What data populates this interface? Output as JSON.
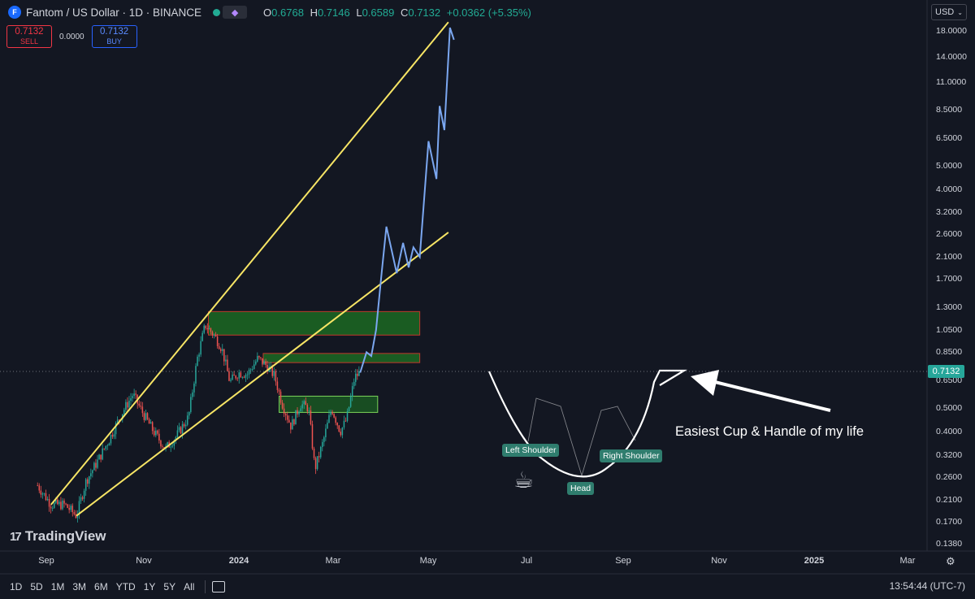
{
  "header": {
    "logo_text": "F",
    "symbol_title": "Fantom / US Dollar · 1D · BINANCE",
    "ohlc": [
      {
        "k": "O",
        "v": "0.6768"
      },
      {
        "k": "H",
        "v": "0.7146"
      },
      {
        "k": "L",
        "v": "0.6589"
      },
      {
        "k": "C",
        "v": "0.7132"
      }
    ],
    "change": "+0.0362 (+5.35%)"
  },
  "trade": {
    "sell_price": "0.7132",
    "sell_label": "SELL",
    "spread": "0.0000",
    "buy_price": "0.7132",
    "buy_label": "BUY"
  },
  "currency": "USD",
  "last_price": "0.7132",
  "colors": {
    "bg": "#131722",
    "up": "#26a69a",
    "down": "#ef5350",
    "trend": "#f7e565",
    "projection": "#7ba7f0",
    "zone": "#1e7a22"
  },
  "chart_data": {
    "type": "candlestick",
    "symbol": "Fantom / US Dollar",
    "interval": "1D",
    "exchange": "BINANCE",
    "y_scale": "log",
    "y_ticks": [
      "18.0000",
      "14.0000",
      "11.0000",
      "8.5000",
      "6.5000",
      "5.0000",
      "4.0000",
      "3.2000",
      "2.6000",
      "2.1000",
      "1.7000",
      "1.3000",
      "1.0500",
      "0.8500",
      "0.6500",
      "0.5000",
      "0.4000",
      "0.3200",
      "0.2600",
      "0.2100",
      "0.1700",
      "0.1380"
    ],
    "x_ticks": [
      "Sep",
      "Nov",
      "2024",
      "Mar",
      "May",
      "Jul",
      "Sep",
      "Nov",
      "2025",
      "Mar"
    ],
    "price_path": [
      {
        "date": "2023-08-22",
        "price": 0.24
      },
      {
        "date": "2023-09-08",
        "price": 0.2
      },
      {
        "date": "2023-09-25",
        "price": 0.2
      },
      {
        "date": "2023-10-10",
        "price": 0.18
      },
      {
        "date": "2023-10-22",
        "price": 0.25
      },
      {
        "date": "2023-11-05",
        "price": 0.3
      },
      {
        "date": "2023-11-20",
        "price": 0.37
      },
      {
        "date": "2023-12-05",
        "price": 0.47
      },
      {
        "date": "2023-12-20",
        "price": 0.57
      },
      {
        "date": "2024-01-01",
        "price": 0.48
      },
      {
        "date": "2024-01-15",
        "price": 0.4
      },
      {
        "date": "2024-01-30",
        "price": 0.34
      },
      {
        "date": "2024-02-12",
        "price": 0.38
      },
      {
        "date": "2024-02-28",
        "price": 0.46
      },
      {
        "date": "2024-03-10",
        "price": 0.8
      },
      {
        "date": "2024-03-20",
        "price": 1.1
      },
      {
        "date": "2024-03-31",
        "price": 1.0
      },
      {
        "date": "2024-04-10",
        "price": 0.88
      },
      {
        "date": "2024-04-20",
        "price": 0.64
      },
      {
        "date": "2024-05-01",
        "price": 0.7
      },
      {
        "date": "2024-05-12",
        "price": 0.69
      },
      {
        "date": "2024-05-25",
        "price": 0.8
      },
      {
        "date": "2024-06-05",
        "price": 0.75
      },
      {
        "date": "2024-06-15",
        "price": 0.68
      },
      {
        "date": "2024-06-25",
        "price": 0.52
      },
      {
        "date": "2024-07-06",
        "price": 0.42
      },
      {
        "date": "2024-07-18",
        "price": 0.52
      },
      {
        "date": "2024-07-28",
        "price": 0.5
      },
      {
        "date": "2024-08-05",
        "price": 0.28
      },
      {
        "date": "2024-08-15",
        "price": 0.36
      },
      {
        "date": "2024-08-26",
        "price": 0.5
      },
      {
        "date": "2024-09-06",
        "price": 0.4
      },
      {
        "date": "2024-09-14",
        "price": 0.45
      },
      {
        "date": "2024-09-24",
        "price": 0.67
      },
      {
        "date": "2024-10-01",
        "price": 0.7
      }
    ],
    "drawings": {
      "upper_trendline": [
        {
          "date": "2023-09-08",
          "price": 0.2
        },
        {
          "date": "2025-01-20",
          "price": 19.5
        }
      ],
      "lower_trendline": [
        {
          "date": "2023-10-10",
          "price": 0.18
        },
        {
          "date": "2025-01-20",
          "price": 2.65
        }
      ],
      "zones": [
        {
          "from": "2024-03-24",
          "to": "2024-12-15",
          "low": 1.0,
          "high": 1.25
        },
        {
          "from": "2024-06-01",
          "to": "2024-12-15",
          "low": 0.77,
          "high": 0.84
        },
        {
          "from": "2024-06-21",
          "to": "2024-10-23",
          "low": 0.48,
          "high": 0.56
        }
      ],
      "projection_path": [
        {
          "date": "2024-10-01",
          "price": 0.7
        },
        {
          "date": "2024-10-09",
          "price": 0.85
        },
        {
          "date": "2024-10-15",
          "price": 0.82
        },
        {
          "date": "2024-10-21",
          "price": 1.05
        },
        {
          "date": "2024-10-28",
          "price": 1.8
        },
        {
          "date": "2024-11-03",
          "price": 2.8
        },
        {
          "date": "2024-11-16",
          "price": 1.8
        },
        {
          "date": "2024-11-24",
          "price": 2.4
        },
        {
          "date": "2024-12-01",
          "price": 1.9
        },
        {
          "date": "2024-12-07",
          "price": 2.3
        },
        {
          "date": "2024-12-15",
          "price": 2.1
        },
        {
          "date": "2024-12-26",
          "price": 6.3
        },
        {
          "date": "2025-01-05",
          "price": 4.4
        },
        {
          "date": "2025-01-09",
          "price": 8.8
        },
        {
          "date": "2025-01-15",
          "price": 7.0
        },
        {
          "date": "2025-01-22",
          "price": 18.5
        },
        {
          "date": "2025-01-27",
          "price": 16.5
        }
      ]
    },
    "labels": [
      "Left Shoulder",
      "Head",
      "Right Shoulder"
    ],
    "annotation": "Easiest Cup & Handle of my life"
  },
  "ranges": [
    "1D",
    "5D",
    "1M",
    "3M",
    "6M",
    "YTD",
    "1Y",
    "5Y",
    "All"
  ],
  "clock": "13:54:44 (UTC-7)",
  "brand": "TradingView"
}
